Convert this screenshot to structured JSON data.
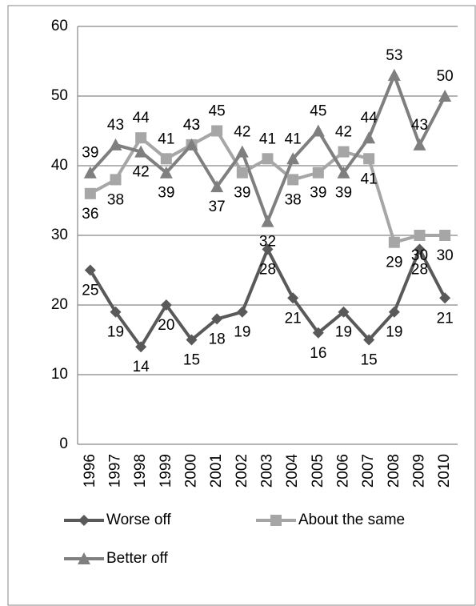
{
  "chart_data": {
    "type": "line",
    "categories": [
      "1996",
      "1997",
      "1998",
      "1999",
      "2000",
      "2001",
      "2002",
      "2003",
      "2004",
      "2005",
      "2006",
      "2007",
      "2008",
      "2009",
      "2010"
    ],
    "series": [
      {
        "name": "Worse off",
        "color": "#595959",
        "marker": "diamond",
        "values": [
          25,
          19,
          14,
          20,
          15,
          18,
          19,
          28,
          21,
          16,
          19,
          15,
          19,
          28,
          21
        ]
      },
      {
        "name": "About the same",
        "color": "#a6a6a6",
        "marker": "square",
        "values": [
          36,
          38,
          44,
          41,
          43,
          45,
          39,
          41,
          38,
          39,
          42,
          41,
          29,
          30,
          30
        ]
      },
      {
        "name": "Better off",
        "color": "#7f7f7f",
        "marker": "triangle",
        "values": [
          39,
          43,
          42,
          39,
          43,
          37,
          42,
          32,
          41,
          45,
          39,
          44,
          53,
          43,
          50
        ]
      }
    ],
    "ylim": [
      0,
      60
    ],
    "yticks": [
      0,
      10,
      20,
      30,
      40,
      50,
      60
    ],
    "grid": true,
    "legend": "bottom"
  }
}
